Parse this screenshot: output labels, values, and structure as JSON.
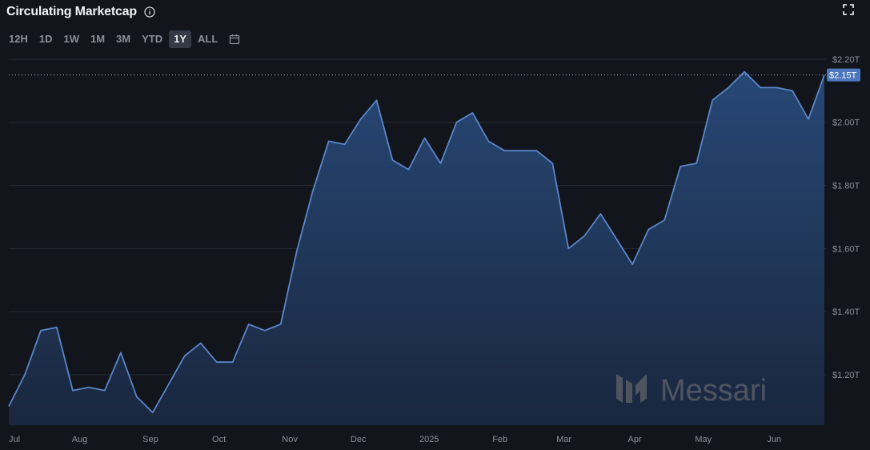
{
  "header": {
    "title": "Circulating Marketcap"
  },
  "range_buttons": [
    "12H",
    "1D",
    "1W",
    "1M",
    "3M",
    "YTD",
    "1Y",
    "ALL"
  ],
  "active_range": "1Y",
  "watermark": "Messari",
  "chart_data": {
    "type": "area",
    "title": "Circulating Marketcap",
    "xlabel": "",
    "ylabel": "",
    "ylim": [
      1.04,
      2.21
    ],
    "y_unit": "T USD",
    "y_ticks": [
      1.2,
      1.4,
      1.6,
      1.8,
      2.0,
      2.2
    ],
    "y_tick_labels": [
      "$1.20T",
      "$1.40T",
      "$1.60T",
      "$1.80T",
      "$2.00T",
      "$2.20T"
    ],
    "x_ticks": [
      "2024-07-01",
      "2024-08-01",
      "2024-09-01",
      "2024-10-01",
      "2024-11-01",
      "2024-12-01",
      "2025-01-01",
      "2025-02-01",
      "2025-03-01",
      "2025-04-01",
      "2025-05-01",
      "2025-06-01"
    ],
    "x_tick_labels": [
      "Jul",
      "Aug",
      "Sep",
      "Oct",
      "Nov",
      "Dec",
      "2025",
      "Feb",
      "Mar",
      "Apr",
      "May",
      "Jun"
    ],
    "current_value": 2.15,
    "current_value_label": "$2.15T",
    "grid": true,
    "colors": {
      "line": "#5b86c8",
      "fill_top": "#284a7a",
      "fill_bottom": "#1a2840",
      "badge": "#4d78be"
    },
    "series": [
      {
        "x": [
          "2024-07-01",
          "2024-07-08",
          "2024-07-15",
          "2024-07-22",
          "2024-07-29",
          "2024-08-05",
          "2024-08-12",
          "2024-08-19",
          "2024-08-26",
          "2024-09-02",
          "2024-09-09",
          "2024-09-16",
          "2024-09-23",
          "2024-09-30",
          "2024-10-07",
          "2024-10-14",
          "2024-10-21",
          "2024-10-28",
          "2024-11-04",
          "2024-11-11",
          "2024-11-18",
          "2024-11-25",
          "2024-12-02",
          "2024-12-09",
          "2024-12-16",
          "2024-12-23",
          "2024-12-30",
          "2025-01-06",
          "2025-01-13",
          "2025-01-20",
          "2025-01-27",
          "2025-02-03",
          "2025-02-10",
          "2025-02-17",
          "2025-02-24",
          "2025-03-03",
          "2025-03-10",
          "2025-03-17",
          "2025-03-24",
          "2025-03-31",
          "2025-04-07",
          "2025-04-14",
          "2025-04-21",
          "2025-04-28",
          "2025-05-05",
          "2025-05-12",
          "2025-05-19",
          "2025-05-26",
          "2025-06-02",
          "2025-06-09",
          "2025-06-16",
          "2025-06-23"
        ],
        "values": [
          1.1,
          1.2,
          1.34,
          1.35,
          1.15,
          1.16,
          1.15,
          1.27,
          1.13,
          1.08,
          1.17,
          1.26,
          1.3,
          1.24,
          1.24,
          1.36,
          1.34,
          1.36,
          1.59,
          1.78,
          1.94,
          1.93,
          2.01,
          2.07,
          1.88,
          1.85,
          1.95,
          1.87,
          2.0,
          2.03,
          1.94,
          1.91,
          1.91,
          1.91,
          1.87,
          1.6,
          1.64,
          1.71,
          1.63,
          1.55,
          1.66,
          1.69,
          1.86,
          1.87,
          2.07,
          2.11,
          2.16,
          2.11,
          2.11,
          2.1,
          2.01,
          2.15
        ]
      }
    ]
  }
}
